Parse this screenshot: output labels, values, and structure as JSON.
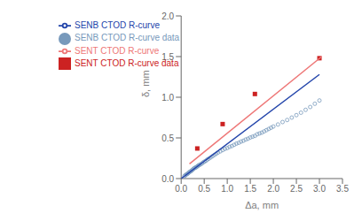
{
  "chart_data": {
    "type": "scatter",
    "title": "",
    "xlabel": "Δa, mm",
    "ylabel": "δ, mm",
    "xlim": [
      0,
      3.5
    ],
    "ylim": [
      0,
      2.0
    ],
    "xticks": [
      {
        "value": 0,
        "label": "0.0"
      },
      0.5,
      {
        "value": 1.0,
        "label": "1.0"
      },
      1.5,
      {
        "value": 2.0,
        "label": "2.0"
      },
      2.5,
      {
        "value": 3.0,
        "label": "3.0"
      },
      3.5
    ],
    "yticks": [
      {
        "value": 0.0,
        "label": "0.0"
      },
      0.5,
      {
        "value": 1.0,
        "label": "1.0"
      },
      1.5,
      {
        "value": 2.0,
        "label": "2.0"
      }
    ],
    "grid": false,
    "legend": "upper left",
    "series": [
      {
        "name": "SENB CTOD R-curve data",
        "type": "scatter",
        "marker": "circle",
        "color": "#7799bb",
        "x": [
          0.07,
          0.09,
          0.11,
          0.13,
          0.15,
          0.17,
          0.19,
          0.21,
          0.23,
          0.25,
          0.27,
          0.29,
          0.31,
          0.33,
          0.35,
          0.37,
          0.39,
          0.42,
          0.45,
          0.48,
          0.51,
          0.54,
          0.57,
          0.6,
          0.64,
          0.68,
          0.72,
          0.76,
          0.8,
          0.85,
          0.9,
          0.95,
          1.0,
          1.05,
          1.1,
          1.15,
          1.2,
          1.25,
          1.3,
          1.35,
          1.4,
          1.45,
          1.5,
          1.55,
          1.6,
          1.65,
          1.7,
          1.75,
          1.8,
          1.85,
          1.9,
          1.95,
          2.0,
          2.1,
          2.2,
          2.3,
          2.4,
          2.5,
          2.6,
          2.7,
          2.8,
          2.9,
          3.0
        ],
        "values": [
          0.03,
          0.04,
          0.05,
          0.055,
          0.065,
          0.075,
          0.085,
          0.09,
          0.1,
          0.11,
          0.12,
          0.13,
          0.135,
          0.14,
          0.15,
          0.16,
          0.165,
          0.175,
          0.185,
          0.2,
          0.21,
          0.22,
          0.235,
          0.245,
          0.26,
          0.275,
          0.29,
          0.305,
          0.32,
          0.335,
          0.35,
          0.365,
          0.375,
          0.39,
          0.4,
          0.415,
          0.43,
          0.44,
          0.455,
          0.465,
          0.48,
          0.49,
          0.505,
          0.515,
          0.525,
          0.545,
          0.555,
          0.565,
          0.58,
          0.595,
          0.61,
          0.625,
          0.64,
          0.665,
          0.695,
          0.72,
          0.75,
          0.78,
          0.81,
          0.845,
          0.88,
          0.92,
          0.96
        ]
      },
      {
        "name": "SENB CTOD R-curve",
        "type": "line",
        "color": "#2244aa",
        "x": [
          0.0,
          3.0
        ],
        "values": [
          0.0,
          1.28
        ]
      },
      {
        "name": "SENT CTOD R-curve data",
        "type": "scatter",
        "marker": "square",
        "color": "#cc2222",
        "x": [
          0.35,
          0.9,
          1.6,
          3.0
        ],
        "values": [
          0.37,
          0.67,
          1.04,
          1.48
        ]
      },
      {
        "name": "SENT CTOD R-curve",
        "type": "line",
        "color": "#ee7777",
        "x": [
          0.18,
          3.05
        ],
        "values": [
          0.18,
          1.5
        ]
      }
    ]
  }
}
